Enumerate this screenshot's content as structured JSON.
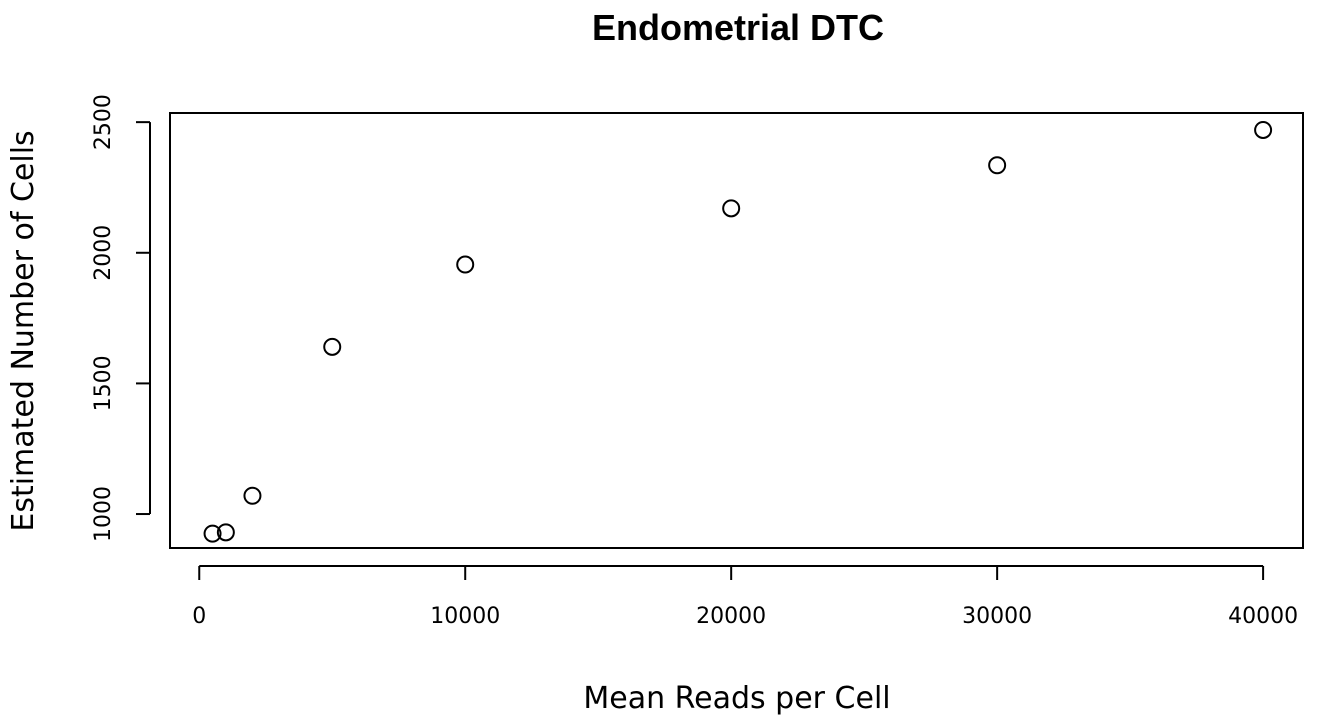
{
  "chart_data": {
    "type": "scatter",
    "title": "Endometrial DTC",
    "xlabel": "Mean Reads per Cell",
    "ylabel": "Estimated Number of Cells",
    "xlim": [
      -1100,
      41500
    ],
    "ylim": [
      870,
      2535
    ],
    "xticks": [
      0,
      10000,
      20000,
      30000,
      40000
    ],
    "yticks": [
      1000,
      1500,
      2000,
      2500
    ],
    "grid": false,
    "legend": "none",
    "x": [
      500,
      1000,
      2000,
      5000,
      10000,
      20000,
      30000,
      40000
    ],
    "y": [
      925,
      930,
      1070,
      1640,
      1955,
      2170,
      2335,
      2470
    ]
  }
}
